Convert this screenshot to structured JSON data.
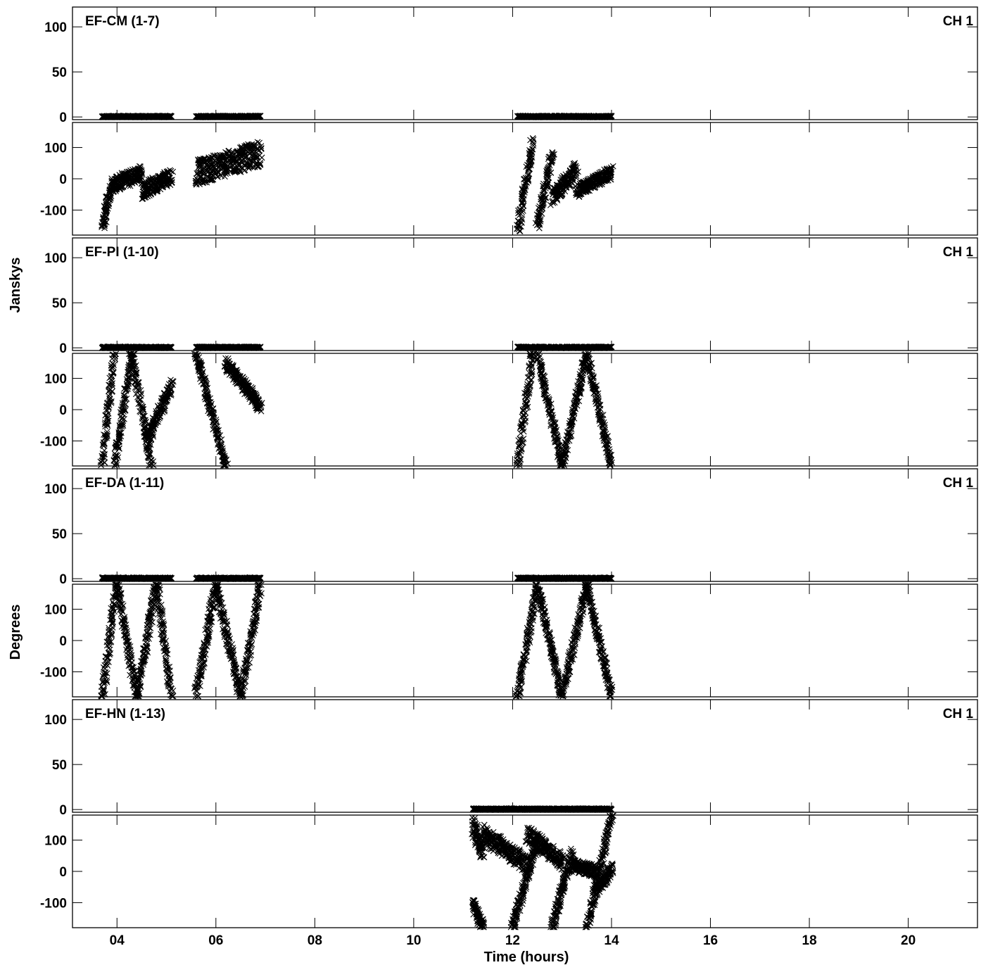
{
  "chart_data": {
    "type": "scatter",
    "xlabel": "Time (hours)",
    "ylabel_amplitude": "Janskys",
    "ylabel_phase": "Degrees",
    "x_ticks": [
      "04",
      "06",
      "08",
      "10",
      "12",
      "14",
      "16",
      "18",
      "20"
    ],
    "x_tick_values": [
      4,
      6,
      8,
      10,
      12,
      14,
      16,
      18,
      20
    ],
    "xlim": [
      3.1,
      21.4
    ],
    "amp_ylim": [
      -3,
      122
    ],
    "amp_ticks": [
      100,
      50,
      0
    ],
    "phase_ylim": [
      -180,
      180
    ],
    "phase_ticks": [
      100,
      0,
      -100
    ],
    "marker": "x",
    "panels": [
      {
        "baseline": "EF-CM (1-7)",
        "channel": "CH 1",
        "amplitude_value": 0.5,
        "scans": [
          [
            3.7,
            5.1
          ],
          [
            5.6,
            6.9
          ],
          [
            12.1,
            14.0
          ]
        ],
        "phase_bands": [
          {
            "t": [
              3.7,
              3.9
            ],
            "phi": [
              -150,
              -20
            ],
            "spread": 40
          },
          {
            "t": [
              3.9,
              4.5
            ],
            "phi": [
              -20,
              20
            ],
            "spread": 50
          },
          {
            "t": [
              4.5,
              5.1
            ],
            "phi": [
              -40,
              10
            ],
            "spread": 50
          },
          {
            "t": [
              5.6,
              6.9
            ],
            "phi": [
              20,
              80
            ],
            "spread": 80
          },
          {
            "t": [
              12.1,
              12.4
            ],
            "phi": [
              -170,
              120
            ],
            "spread": 30
          },
          {
            "t": [
              12.5,
              12.8
            ],
            "phi": [
              -150,
              80
            ],
            "spread": 30
          },
          {
            "t": [
              12.8,
              13.3
            ],
            "phi": [
              -60,
              30
            ],
            "spread": 50
          },
          {
            "t": [
              13.3,
              14.0
            ],
            "phi": [
              -40,
              20
            ],
            "spread": 40
          }
        ]
      },
      {
        "baseline": "EF-PI (1-10)",
        "channel": "CH 1",
        "amplitude_value": 0.5,
        "scans": [
          [
            3.7,
            5.1
          ],
          [
            5.6,
            6.9
          ],
          [
            12.1,
            14.0
          ]
        ],
        "phase_bands": [
          {
            "t": [
              3.7,
              3.95
            ],
            "phi": [
              -180,
              180
            ],
            "spread": 30
          },
          {
            "t": [
              3.95,
              4.3
            ],
            "phi": [
              -180,
              180
            ],
            "spread": 30
          },
          {
            "t": [
              4.3,
              4.7
            ],
            "phi": [
              180,
              -180
            ],
            "spread": 30
          },
          {
            "t": [
              4.6,
              5.1
            ],
            "phi": [
              -100,
              80
            ],
            "spread": 40
          },
          {
            "t": [
              5.6,
              6.2
            ],
            "phi": [
              180,
              -180
            ],
            "spread": 30
          },
          {
            "t": [
              6.2,
              6.9
            ],
            "phi": [
              150,
              10
            ],
            "spread": 40
          },
          {
            "t": [
              12.1,
              12.4
            ],
            "phi": [
              -180,
              180
            ],
            "spread": 30
          },
          {
            "t": [
              12.5,
              13.0
            ],
            "phi": [
              180,
              -180
            ],
            "spread": 30
          },
          {
            "t": [
              13.0,
              13.5
            ],
            "phi": [
              -180,
              180
            ],
            "spread": 30
          },
          {
            "t": [
              13.5,
              14.0
            ],
            "phi": [
              180,
              -180
            ],
            "spread": 30
          }
        ]
      },
      {
        "baseline": "EF-DA (1-11)",
        "channel": "CH 1",
        "amplitude_value": 0.5,
        "scans": [
          [
            3.7,
            5.1
          ],
          [
            5.6,
            6.9
          ],
          [
            12.1,
            14.0
          ]
        ],
        "phase_bands": [
          {
            "t": [
              3.7,
              4.0
            ],
            "phi": [
              -180,
              180
            ],
            "spread": 40
          },
          {
            "t": [
              4.0,
              4.4
            ],
            "phi": [
              180,
              -180
            ],
            "spread": 40
          },
          {
            "t": [
              4.4,
              4.8
            ],
            "phi": [
              -180,
              180
            ],
            "spread": 40
          },
          {
            "t": [
              4.8,
              5.1
            ],
            "phi": [
              180,
              -180
            ],
            "spread": 40
          },
          {
            "t": [
              5.6,
              6.0
            ],
            "phi": [
              -180,
              180
            ],
            "spread": 40
          },
          {
            "t": [
              6.0,
              6.5
            ],
            "phi": [
              180,
              -180
            ],
            "spread": 40
          },
          {
            "t": [
              6.5,
              6.9
            ],
            "phi": [
              -180,
              180
            ],
            "spread": 40
          },
          {
            "t": [
              12.1,
              12.5
            ],
            "phi": [
              -180,
              180
            ],
            "spread": 30
          },
          {
            "t": [
              12.5,
              13.0
            ],
            "phi": [
              180,
              -180
            ],
            "spread": 30
          },
          {
            "t": [
              13.0,
              13.5
            ],
            "phi": [
              -180,
              180
            ],
            "spread": 30
          },
          {
            "t": [
              13.5,
              14.0
            ],
            "phi": [
              180,
              -180
            ],
            "spread": 30
          }
        ]
      },
      {
        "baseline": "EF-HN (1-13)",
        "channel": "CH 1",
        "amplitude_value": 0.5,
        "scans": [
          [
            11.2,
            14.0
          ]
        ],
        "phase_bands": [
          {
            "t": [
              11.2,
              11.4
            ],
            "phi": [
              150,
              60
            ],
            "spread": 60
          },
          {
            "t": [
              11.2,
              11.4
            ],
            "phi": [
              -100,
              -180
            ],
            "spread": 40
          },
          {
            "t": [
              11.4,
              12.3
            ],
            "phi": [
              120,
              20
            ],
            "spread": 60
          },
          {
            "t": [
              12.3,
              13.0
            ],
            "phi": [
              120,
              30
            ],
            "spread": 50
          },
          {
            "t": [
              12.0,
              12.5
            ],
            "phi": [
              -180,
              100
            ],
            "spread": 30
          },
          {
            "t": [
              12.8,
              13.2
            ],
            "phi": [
              -180,
              60
            ],
            "spread": 30
          },
          {
            "t": [
              13.2,
              13.7
            ],
            "phi": [
              20,
              0
            ],
            "spread": 40
          },
          {
            "t": [
              13.5,
              14.0
            ],
            "phi": [
              -180,
              180
            ],
            "spread": 30
          },
          {
            "t": [
              13.7,
              14.0
            ],
            "phi": [
              -60,
              10
            ],
            "spread": 40
          }
        ]
      }
    ]
  }
}
